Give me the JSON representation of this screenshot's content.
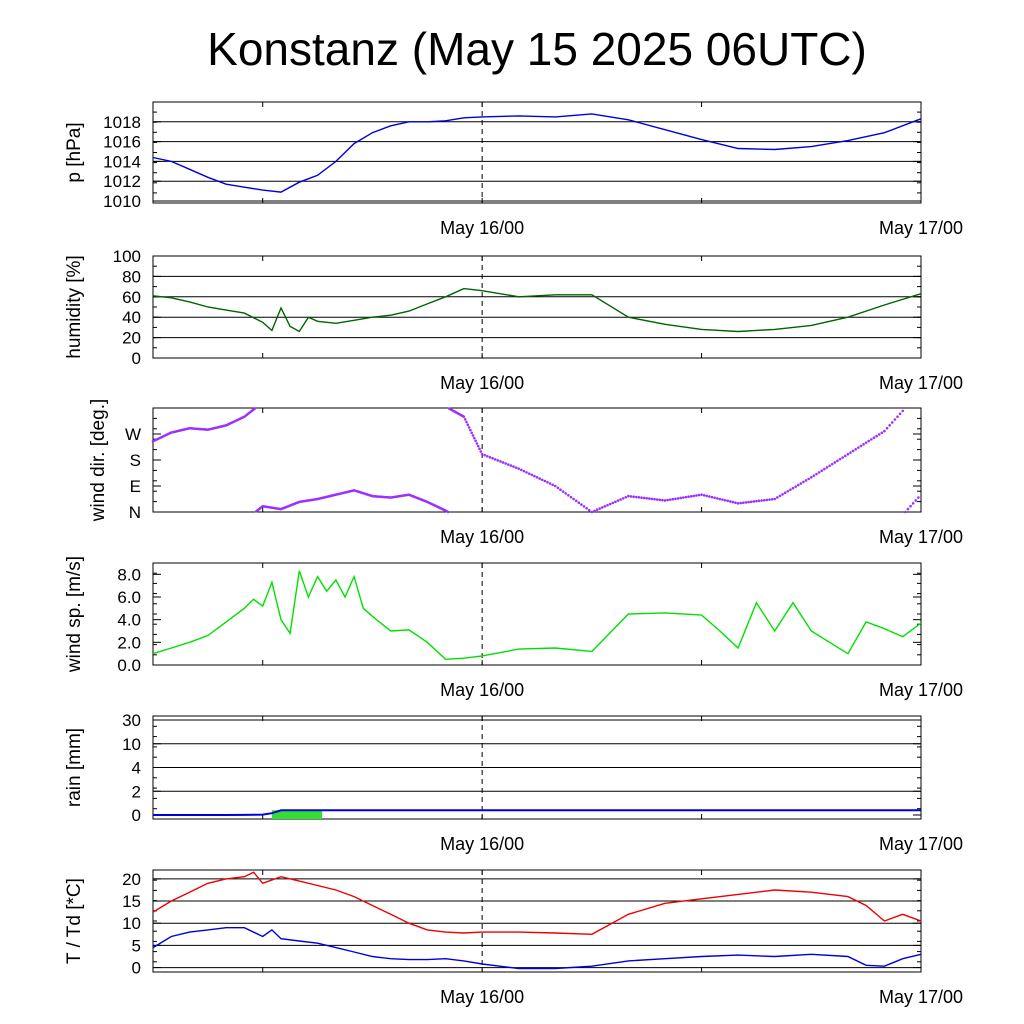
{
  "title": "Konstanz (May 15 2025 06UTC)",
  "x_axis": {
    "start": "2025-05-15T06:00Z",
    "end": "2025-05-17T00:00Z",
    "label_ticks": [
      {
        "x": "2025-05-16T00:00Z",
        "label": "May 16/00"
      },
      {
        "x": "2025-05-17T00:00Z",
        "label": "May 17/00"
      }
    ],
    "minor_ticks": [
      "2025-05-15T12:00Z",
      "2025-05-16T12:00Z"
    ],
    "dashed_line": "2025-05-16T00:00Z"
  },
  "chart_data": [
    {
      "type": "line",
      "name": "pressure",
      "ylabel": "p [hPa]",
      "ylim": [
        1009.8,
        1020
      ],
      "yticks": [
        1010,
        1012,
        1014,
        1016,
        1018
      ],
      "ytick_labels": [
        "1010",
        "1012",
        "1014",
        "1016",
        "1018"
      ],
      "gridlines": [
        1010,
        1012,
        1014,
        1016,
        1018,
        1020
      ],
      "color": "#0000dd",
      "x": [
        "2025-05-15T06:00Z",
        "2025-05-15T07:00Z",
        "2025-05-15T08:00Z",
        "2025-05-15T09:00Z",
        "2025-05-15T10:00Z",
        "2025-05-15T11:00Z",
        "2025-05-15T12:00Z",
        "2025-05-15T13:00Z",
        "2025-05-15T14:00Z",
        "2025-05-15T15:00Z",
        "2025-05-15T16:00Z",
        "2025-05-15T17:00Z",
        "2025-05-15T18:00Z",
        "2025-05-15T19:00Z",
        "2025-05-15T20:00Z",
        "2025-05-15T21:00Z",
        "2025-05-15T22:00Z",
        "2025-05-15T23:00Z",
        "2025-05-16T00:00Z",
        "2025-05-16T02:00Z",
        "2025-05-16T04:00Z",
        "2025-05-16T06:00Z",
        "2025-05-16T08:00Z",
        "2025-05-16T10:00Z",
        "2025-05-16T12:00Z",
        "2025-05-16T14:00Z",
        "2025-05-16T16:00Z",
        "2025-05-16T18:00Z",
        "2025-05-16T20:00Z",
        "2025-05-16T22:00Z",
        "2025-05-17T00:00Z"
      ],
      "y": [
        1014.4,
        1014.0,
        1013.2,
        1012.4,
        1011.7,
        1011.4,
        1011.1,
        1010.9,
        1011.9,
        1012.6,
        1014.0,
        1015.8,
        1016.9,
        1017.6,
        1018.0,
        1018.0,
        1018.1,
        1018.4,
        1018.5,
        1018.6,
        1018.5,
        1018.8,
        1018.2,
        1017.2,
        1016.2,
        1015.3,
        1015.2,
        1015.5,
        1016.1,
        1016.9,
        1018.3
      ]
    },
    {
      "type": "line",
      "name": "humidity",
      "ylabel": "humidity [%]",
      "ylim": [
        0,
        100
      ],
      "yticks": [
        0,
        20,
        40,
        60,
        80,
        100
      ],
      "ytick_labels": [
        "0",
        "20",
        "40",
        "60",
        "80",
        "100"
      ],
      "gridlines": [
        20,
        40,
        60,
        80,
        100
      ],
      "color": "#006400",
      "x": [
        "2025-05-15T06:00Z",
        "2025-05-15T07:00Z",
        "2025-05-15T08:00Z",
        "2025-05-15T09:00Z",
        "2025-05-15T10:00Z",
        "2025-05-15T11:00Z",
        "2025-05-15T12:00Z",
        "2025-05-15T12:30Z",
        "2025-05-15T13:00Z",
        "2025-05-15T13:30Z",
        "2025-05-15T14:00Z",
        "2025-05-15T14:30Z",
        "2025-05-15T15:00Z",
        "2025-05-15T16:00Z",
        "2025-05-15T17:00Z",
        "2025-05-15T18:00Z",
        "2025-05-15T19:00Z",
        "2025-05-15T20:00Z",
        "2025-05-15T21:00Z",
        "2025-05-15T22:00Z",
        "2025-05-15T23:00Z",
        "2025-05-16T00:00Z",
        "2025-05-16T02:00Z",
        "2025-05-16T04:00Z",
        "2025-05-16T06:00Z",
        "2025-05-16T08:00Z",
        "2025-05-16T10:00Z",
        "2025-05-16T12:00Z",
        "2025-05-16T14:00Z",
        "2025-05-16T16:00Z",
        "2025-05-16T18:00Z",
        "2025-05-16T20:00Z",
        "2025-05-16T22:00Z",
        "2025-05-17T00:00Z"
      ],
      "y": [
        61,
        59,
        55,
        50,
        47,
        44,
        35,
        27,
        49,
        31,
        26,
        40,
        36,
        34,
        37,
        40,
        42,
        46,
        53,
        60,
        68,
        66,
        60,
        62,
        62,
        40,
        33,
        28,
        26,
        28,
        32,
        40,
        52,
        63
      ]
    },
    {
      "type": "scatter",
      "name": "wind direction",
      "ylabel": "wind dir. [deg.]",
      "ylim": [
        0,
        360
      ],
      "yticks": [
        0,
        90,
        180,
        270
      ],
      "ytick_labels": [
        "N",
        "E",
        "S",
        "W"
      ],
      "gridlines": [],
      "color": "#9b30ff",
      "x": [
        "2025-05-15T06:00Z",
        "2025-05-15T07:00Z",
        "2025-05-15T08:00Z",
        "2025-05-15T09:00Z",
        "2025-05-15T10:00Z",
        "2025-05-15T11:00Z",
        "2025-05-15T12:00Z",
        "2025-05-15T13:00Z",
        "2025-05-15T14:00Z",
        "2025-05-15T15:00Z",
        "2025-05-15T16:00Z",
        "2025-05-15T17:00Z",
        "2025-05-15T18:00Z",
        "2025-05-15T19:00Z",
        "2025-05-15T20:00Z",
        "2025-05-15T21:00Z",
        "2025-05-15T22:00Z",
        "2025-05-15T23:00Z",
        "2025-05-16T00:00Z",
        "2025-05-16T02:00Z",
        "2025-05-16T04:00Z",
        "2025-05-16T06:00Z",
        "2025-05-16T08:00Z",
        "2025-05-16T10:00Z",
        "2025-05-16T12:00Z",
        "2025-05-16T14:00Z",
        "2025-05-16T16:00Z",
        "2025-05-16T18:00Z",
        "2025-05-16T20:00Z",
        "2025-05-16T22:00Z",
        "2025-05-17T00:00Z"
      ],
      "y": [
        245,
        275,
        290,
        285,
        300,
        330,
        20,
        10,
        35,
        45,
        60,
        75,
        55,
        50,
        60,
        35,
        5,
        330,
        200,
        150,
        90,
        0,
        55,
        40,
        60,
        30,
        45,
        120,
        200,
        280,
        60
      ]
    },
    {
      "type": "line",
      "name": "wind speed",
      "ylabel": "wind sp. [m/s]",
      "ylim": [
        0,
        9
      ],
      "yticks": [
        0,
        2,
        4,
        6,
        8
      ],
      "ytick_labels": [
        "0.0",
        "2.0",
        "4.0",
        "6.0",
        "8.0"
      ],
      "gridlines": [],
      "color": "#00e000",
      "x": [
        "2025-05-15T06:00Z",
        "2025-05-15T07:00Z",
        "2025-05-15T08:00Z",
        "2025-05-15T09:00Z",
        "2025-05-15T10:00Z",
        "2025-05-15T11:00Z",
        "2025-05-15T11:30Z",
        "2025-05-15T12:00Z",
        "2025-05-15T12:30Z",
        "2025-05-15T13:00Z",
        "2025-05-15T13:30Z",
        "2025-05-15T14:00Z",
        "2025-05-15T14:30Z",
        "2025-05-15T15:00Z",
        "2025-05-15T15:30Z",
        "2025-05-15T16:00Z",
        "2025-05-15T16:30Z",
        "2025-05-15T17:00Z",
        "2025-05-15T17:30Z",
        "2025-05-15T18:00Z",
        "2025-05-15T19:00Z",
        "2025-05-15T20:00Z",
        "2025-05-15T21:00Z",
        "2025-05-15T22:00Z",
        "2025-05-15T23:00Z",
        "2025-05-16T00:00Z",
        "2025-05-16T02:00Z",
        "2025-05-16T04:00Z",
        "2025-05-16T06:00Z",
        "2025-05-16T08:00Z",
        "2025-05-16T10:00Z",
        "2025-05-16T12:00Z",
        "2025-05-16T13:00Z",
        "2025-05-16T14:00Z",
        "2025-05-16T15:00Z",
        "2025-05-16T16:00Z",
        "2025-05-16T17:00Z",
        "2025-05-16T18:00Z",
        "2025-05-16T20:00Z",
        "2025-05-16T21:00Z",
        "2025-05-16T22:00Z",
        "2025-05-16T23:00Z",
        "2025-05-17T00:00Z"
      ],
      "y": [
        1.0,
        1.5,
        2.0,
        2.6,
        3.8,
        5.0,
        5.8,
        5.2,
        7.3,
        4.0,
        2.8,
        8.3,
        6.0,
        7.8,
        6.5,
        7.5,
        6.0,
        7.8,
        5.0,
        4.3,
        3.0,
        3.1,
        2.0,
        0.5,
        0.6,
        0.8,
        1.4,
        1.5,
        1.2,
        4.5,
        4.6,
        4.4,
        3.0,
        1.5,
        5.5,
        3.0,
        5.5,
        3.0,
        1.0,
        3.8,
        3.2,
        2.5,
        3.7
      ]
    },
    {
      "type": "area",
      "name": "rain",
      "ylabel": "rain [mm]",
      "ylim": [
        0,
        30
      ],
      "yticks": [
        0,
        2,
        4,
        10,
        30
      ],
      "ytick_labels": [
        "0",
        "2",
        "4",
        "10",
        "30"
      ],
      "gridlines": [
        2,
        4,
        10,
        30
      ],
      "color": "#0000dd",
      "bar_color": "#33dd33",
      "accumulated": {
        "x": [
          "2025-05-15T06:00Z",
          "2025-05-15T10:00Z",
          "2025-05-15T11:00Z",
          "2025-05-15T12:00Z",
          "2025-05-15T12:30Z",
          "2025-05-15T13:00Z",
          "2025-05-17T00:00Z"
        ],
        "y": [
          0,
          0,
          0.01,
          0.03,
          0.15,
          0.4,
          0.4
        ]
      },
      "bars": [
        {
          "from": "2025-05-15T12:30Z",
          "to": "2025-05-15T15:15Z",
          "value": 0.4
        }
      ]
    },
    {
      "type": "line",
      "name": "temperature",
      "ylabel": "T / Td [*C]",
      "ylim": [
        -1,
        22
      ],
      "yticks": [
        0,
        5,
        10,
        15,
        20
      ],
      "ytick_labels": [
        "0",
        "5",
        "10",
        "15",
        "20"
      ],
      "gridlines": [
        0,
        5,
        10,
        15,
        20
      ],
      "series": [
        {
          "color": "#ee0000",
          "x": [
            "2025-05-15T06:00Z",
            "2025-05-15T07:00Z",
            "2025-05-15T08:00Z",
            "2025-05-15T09:00Z",
            "2025-05-15T10:00Z",
            "2025-05-15T11:00Z",
            "2025-05-15T11:30Z",
            "2025-05-15T12:00Z",
            "2025-05-15T13:00Z",
            "2025-05-15T14:00Z",
            "2025-05-15T15:00Z",
            "2025-05-15T16:00Z",
            "2025-05-15T17:00Z",
            "2025-05-15T18:00Z",
            "2025-05-15T19:00Z",
            "2025-05-15T20:00Z",
            "2025-05-15T21:00Z",
            "2025-05-15T22:00Z",
            "2025-05-15T23:00Z",
            "2025-05-16T00:00Z",
            "2025-05-16T02:00Z",
            "2025-05-16T04:00Z",
            "2025-05-16T06:00Z",
            "2025-05-16T08:00Z",
            "2025-05-16T10:00Z",
            "2025-05-16T12:00Z",
            "2025-05-16T14:00Z",
            "2025-05-16T16:00Z",
            "2025-05-16T18:00Z",
            "2025-05-16T20:00Z",
            "2025-05-16T21:00Z",
            "2025-05-16T22:00Z",
            "2025-05-16T23:00Z",
            "2025-05-17T00:00Z"
          ],
          "y": [
            12.5,
            15.0,
            17.0,
            19.0,
            20.0,
            20.5,
            21.5,
            19.0,
            20.5,
            19.5,
            18.5,
            17.5,
            16.0,
            14.0,
            12.0,
            10.0,
            8.5,
            8.0,
            7.8,
            8.0,
            8.0,
            7.8,
            7.5,
            12.0,
            14.5,
            15.5,
            16.5,
            17.5,
            17.0,
            16.0,
            14.0,
            10.5,
            12.0,
            10.5
          ]
        },
        {
          "color": "#0000dd",
          "x": [
            "2025-05-15T06:00Z",
            "2025-05-15T07:00Z",
            "2025-05-15T08:00Z",
            "2025-05-15T09:00Z",
            "2025-05-15T10:00Z",
            "2025-05-15T11:00Z",
            "2025-05-15T12:00Z",
            "2025-05-15T12:30Z",
            "2025-05-15T13:00Z",
            "2025-05-15T14:00Z",
            "2025-05-15T15:00Z",
            "2025-05-15T16:00Z",
            "2025-05-15T17:00Z",
            "2025-05-15T18:00Z",
            "2025-05-15T19:00Z",
            "2025-05-15T20:00Z",
            "2025-05-15T21:00Z",
            "2025-05-15T22:00Z",
            "2025-05-15T23:00Z",
            "2025-05-16T00:00Z",
            "2025-05-16T02:00Z",
            "2025-05-16T04:00Z",
            "2025-05-16T06:00Z",
            "2025-05-16T08:00Z",
            "2025-05-16T10:00Z",
            "2025-05-16T12:00Z",
            "2025-05-16T14:00Z",
            "2025-05-16T16:00Z",
            "2025-05-16T18:00Z",
            "2025-05-16T20:00Z",
            "2025-05-16T21:00Z",
            "2025-05-16T22:00Z",
            "2025-05-16T23:00Z",
            "2025-05-17T00:00Z"
          ],
          "y": [
            4.5,
            7.0,
            8.0,
            8.5,
            9.0,
            9.0,
            7.0,
            8.5,
            6.5,
            6.0,
            5.5,
            4.5,
            3.5,
            2.5,
            2.0,
            1.8,
            1.8,
            2.0,
            1.5,
            0.8,
            -0.2,
            -0.2,
            0.3,
            1.5,
            2.0,
            2.5,
            2.8,
            2.5,
            3.0,
            2.5,
            0.5,
            0.3,
            2.0,
            3.0
          ]
        }
      ]
    }
  ]
}
